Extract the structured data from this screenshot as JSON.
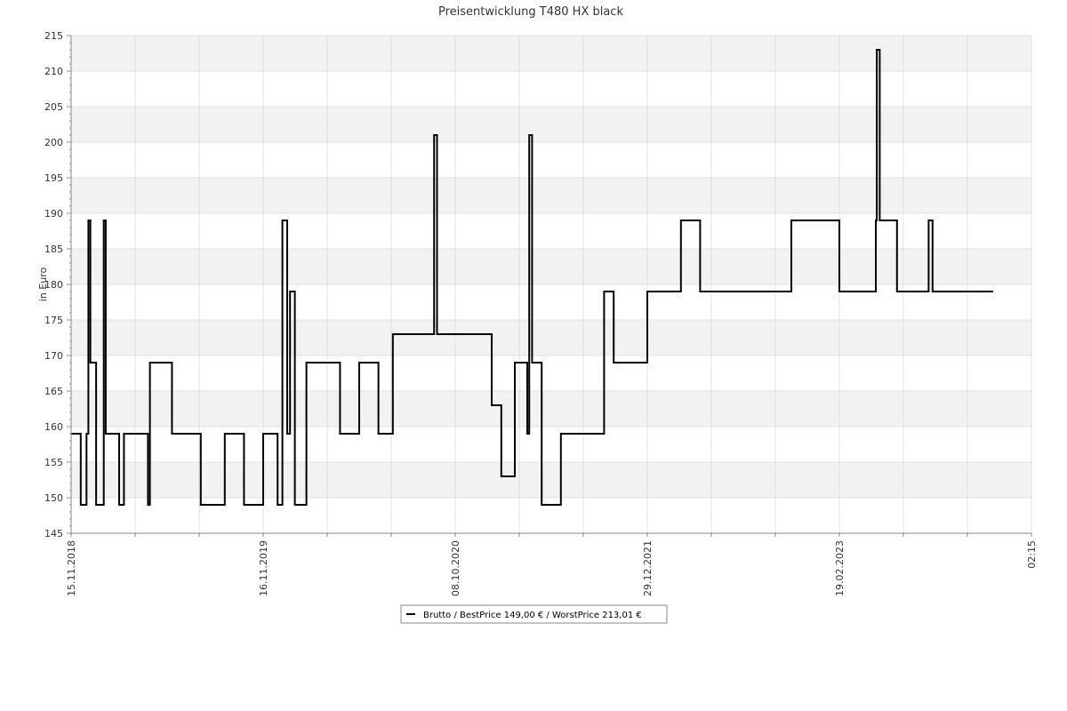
{
  "chart_data": {
    "type": "line",
    "title": "Preisentwicklung T480 HX black",
    "ylabel": "in Euro",
    "xlabel": "",
    "ylim": [
      145,
      215
    ],
    "y_ticks": [
      145,
      150,
      155,
      160,
      165,
      170,
      175,
      180,
      185,
      190,
      195,
      200,
      205,
      210,
      215
    ],
    "x_tick_labels": [
      "15.11.2018",
      "16.11.2019",
      "08.10.2020",
      "29.12.2021",
      "19.02.2023",
      "02:15"
    ],
    "grid": true,
    "legend_position": "bottom-center",
    "legend": {
      "label": "Brutto / BestPrice  149,00 € / WorstPrice  213,01 €"
    },
    "colors": {
      "series": "#000000",
      "band": "#f2f2f2",
      "grid": "#e0e0e0",
      "axis": "#888888"
    },
    "series": [
      {
        "name": "Brutto",
        "points": [
          [
            0.0,
            159
          ],
          [
            0.01,
            149
          ],
          [
            0.016,
            159
          ],
          [
            0.018,
            189
          ],
          [
            0.02,
            169
          ],
          [
            0.026,
            149
          ],
          [
            0.034,
            189
          ],
          [
            0.036,
            159
          ],
          [
            0.05,
            149
          ],
          [
            0.055,
            159
          ],
          [
            0.08,
            149
          ],
          [
            0.082,
            169
          ],
          [
            0.105,
            159
          ],
          [
            0.135,
            149
          ],
          [
            0.16,
            159
          ],
          [
            0.18,
            149
          ],
          [
            0.2,
            159
          ],
          [
            0.215,
            149
          ],
          [
            0.22,
            189
          ],
          [
            0.225,
            159
          ],
          [
            0.228,
            179
          ],
          [
            0.233,
            149
          ],
          [
            0.245,
            169
          ],
          [
            0.28,
            159
          ],
          [
            0.3,
            169
          ],
          [
            0.32,
            159
          ],
          [
            0.335,
            173
          ],
          [
            0.378,
            201
          ],
          [
            0.381,
            173
          ],
          [
            0.438,
            163
          ],
          [
            0.448,
            153
          ],
          [
            0.462,
            169
          ],
          [
            0.475,
            159
          ],
          [
            0.477,
            201
          ],
          [
            0.48,
            169
          ],
          [
            0.49,
            149
          ],
          [
            0.51,
            159
          ],
          [
            0.55,
            159
          ],
          [
            0.555,
            179
          ],
          [
            0.565,
            169
          ],
          [
            0.6,
            179
          ],
          [
            0.635,
            189
          ],
          [
            0.655,
            179
          ],
          [
            0.75,
            189
          ],
          [
            0.8,
            179
          ],
          [
            0.838,
            189
          ],
          [
            0.839,
            213
          ],
          [
            0.842,
            189
          ],
          [
            0.86,
            179
          ],
          [
            0.893,
            189
          ],
          [
            0.897,
            179
          ],
          [
            0.96,
            179
          ]
        ]
      }
    ]
  }
}
